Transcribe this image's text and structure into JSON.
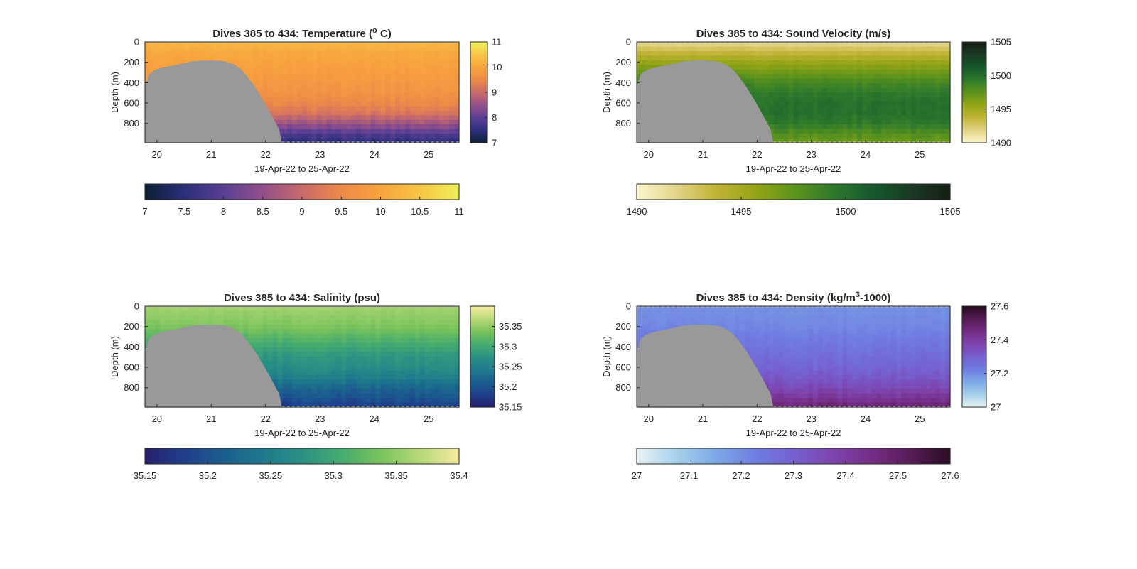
{
  "figure": {
    "panels": [
      {
        "id": "temperature",
        "title_prefix": "Dives 385 to 434: Temperature (",
        "title_sup": "o",
        "title_suffix": " C)",
        "colormap": [
          "#0b1f33",
          "#2c2f7a",
          "#5a3f94",
          "#93508a",
          "#c86a6b",
          "#ed8a48",
          "#f7a33e",
          "#f9c545",
          "#eef05a"
        ],
        "colorbar_ticks": [
          "7",
          "7.5",
          "8",
          "8.5",
          "9",
          "9.5",
          "10",
          "10.5",
          "11"
        ],
        "side_colorbar_ticks": [
          "7",
          "8",
          "9",
          "10",
          "11"
        ]
      },
      {
        "id": "sound_velocity",
        "title_prefix": "Dives 385 to 434: Sound Velocity (m/s)",
        "title_sup": "",
        "title_suffix": "",
        "colormap": [
          "#fbf6cf",
          "#e3d58a",
          "#c2b436",
          "#96a516",
          "#5f941c",
          "#2f7a2c",
          "#16592c",
          "#1a3a24",
          "#171e15"
        ],
        "colorbar_ticks": [
          "1490",
          "1495",
          "1500",
          "1505"
        ],
        "side_colorbar_ticks": [
          "1490",
          "1495",
          "1500",
          "1505"
        ]
      },
      {
        "id": "salinity",
        "title_prefix": "Dives 385 to 434: Salinity (psu)",
        "title_sup": "",
        "title_suffix": "",
        "colormap": [
          "#271f6b",
          "#1f3f8c",
          "#1b5e8f",
          "#1e7a8c",
          "#2a9184",
          "#45ab70",
          "#79c35b",
          "#b6d978",
          "#f6ea9e"
        ],
        "colorbar_ticks": [
          "35.15",
          "35.2",
          "35.25",
          "35.3",
          "35.35",
          "35.4"
        ],
        "side_colorbar_ticks": [
          "35.15",
          "35.2",
          "35.25",
          "35.3",
          "35.35"
        ]
      },
      {
        "id": "density",
        "title_prefix": "Dives 385 to 434: Density (kg/m",
        "title_sup": "3",
        "title_suffix": "-1000)",
        "colormap": [
          "#e9f4f4",
          "#a8d1ea",
          "#7ea9e6",
          "#6f7fe0",
          "#7561cf",
          "#7e44ae",
          "#742d85",
          "#561c56",
          "#2a0d24"
        ],
        "colorbar_ticks": [
          "27",
          "27.1",
          "27.2",
          "27.3",
          "27.4",
          "27.5",
          "27.6"
        ],
        "side_colorbar_ticks": [
          "27",
          "27.2",
          "27.4",
          "27.6"
        ]
      }
    ],
    "shared": {
      "ylabel": "Depth (m)",
      "xlabel": "19-Apr-22 to 25-Apr-22",
      "y_ticks": [
        "0",
        "200",
        "400",
        "600",
        "800"
      ],
      "x_ticks": [
        "20",
        "21",
        "22",
        "23",
        "24",
        "25"
      ],
      "bathymetry_color": "#999999"
    }
  },
  "chart_data": [
    {
      "type": "heatmap",
      "title": "Dives 385 to 434: Temperature (o C)",
      "xlabel": "19-Apr-22 to 25-Apr-22",
      "ylabel": "Depth (m)",
      "xlim": [
        19.78,
        25.56
      ],
      "ylim": [
        0,
        990
      ],
      "y_reversed": true,
      "clim": [
        7,
        11
      ],
      "colorbar_label_ticks": [
        7,
        7.5,
        8,
        8.5,
        9,
        9.5,
        10,
        10.5,
        11
      ],
      "profile_depths": [
        0,
        100,
        200,
        300,
        400,
        500,
        600,
        700,
        800,
        900,
        990
      ],
      "profile_values": [
        10.3,
        10.1,
        10.0,
        9.9,
        9.8,
        9.7,
        9.5,
        9.2,
        8.6,
        7.9,
        7.5
      ],
      "seafloor_x": [
        19.78,
        19.85,
        19.95,
        20.05,
        20.15,
        20.25,
        20.35,
        20.45,
        20.55,
        20.65,
        20.75,
        20.85,
        20.95,
        21.05,
        21.15,
        21.25,
        21.35,
        21.45,
        21.55,
        21.65,
        21.75,
        21.85,
        21.95,
        22.05,
        22.15,
        22.25,
        22.3
      ],
      "seafloor_depth": [
        440,
        320,
        280,
        260,
        250,
        235,
        225,
        215,
        200,
        190,
        185,
        183,
        182,
        182,
        185,
        190,
        205,
        230,
        270,
        330,
        400,
        480,
        570,
        660,
        760,
        860,
        990
      ]
    },
    {
      "type": "heatmap",
      "title": "Dives 385 to 434: Sound Velocity (m/s)",
      "xlabel": "19-Apr-22 to 25-Apr-22",
      "ylabel": "Depth (m)",
      "xlim": [
        19.78,
        25.56
      ],
      "ylim": [
        0,
        990
      ],
      "y_reversed": true,
      "clim": [
        1490,
        1505
      ],
      "colorbar_label_ticks": [
        1490,
        1495,
        1500,
        1505
      ],
      "profile_depths": [
        0,
        100,
        200,
        300,
        400,
        500,
        600,
        700,
        800,
        900,
        990
      ],
      "profile_values": [
        1491.5,
        1493.5,
        1495.5,
        1497,
        1498.5,
        1499.5,
        1500,
        1500,
        1499.5,
        1498,
        1497
      ],
      "seafloor_x": [
        19.78,
        19.85,
        19.95,
        20.05,
        20.15,
        20.25,
        20.35,
        20.45,
        20.55,
        20.65,
        20.75,
        20.85,
        20.95,
        21.05,
        21.15,
        21.25,
        21.35,
        21.45,
        21.55,
        21.65,
        21.75,
        21.85,
        21.95,
        22.05,
        22.15,
        22.25,
        22.3
      ],
      "seafloor_depth": [
        440,
        320,
        280,
        260,
        250,
        235,
        225,
        215,
        200,
        190,
        185,
        183,
        182,
        182,
        185,
        190,
        205,
        230,
        270,
        330,
        400,
        480,
        570,
        660,
        760,
        860,
        990
      ]
    },
    {
      "type": "heatmap",
      "title": "Dives 385 to 434: Salinity (psu)",
      "xlabel": "19-Apr-22 to 25-Apr-22",
      "ylabel": "Depth (m)",
      "xlim": [
        19.78,
        25.56
      ],
      "ylim": [
        0,
        990
      ],
      "y_reversed": true,
      "clim": [
        35.15,
        35.4
      ],
      "colorbar_label_ticks": [
        35.15,
        35.2,
        35.25,
        35.3,
        35.35,
        35.4
      ],
      "profile_depths": [
        0,
        100,
        200,
        300,
        400,
        500,
        600,
        700,
        800,
        900,
        990
      ],
      "profile_values": [
        35.36,
        35.35,
        35.34,
        35.32,
        35.3,
        35.28,
        35.27,
        35.25,
        35.22,
        35.2,
        35.18
      ],
      "seafloor_x": [
        19.78,
        19.85,
        19.95,
        20.05,
        20.15,
        20.25,
        20.35,
        20.45,
        20.55,
        20.65,
        20.75,
        20.85,
        20.95,
        21.05,
        21.15,
        21.25,
        21.35,
        21.45,
        21.55,
        21.65,
        21.75,
        21.85,
        21.95,
        22.05,
        22.15,
        22.25,
        22.3
      ],
      "seafloor_depth": [
        440,
        320,
        280,
        260,
        250,
        235,
        225,
        215,
        200,
        190,
        185,
        183,
        182,
        182,
        185,
        190,
        205,
        230,
        270,
        330,
        400,
        480,
        570,
        660,
        760,
        860,
        990
      ]
    },
    {
      "type": "heatmap",
      "title": "Dives 385 to 434: Density (kg/m3-1000)",
      "xlabel": "19-Apr-22 to 25-Apr-22",
      "ylabel": "Depth (m)",
      "xlim": [
        19.78,
        25.56
      ],
      "ylim": [
        0,
        990
      ],
      "y_reversed": true,
      "clim": [
        27,
        27.6
      ],
      "colorbar_label_ticks": [
        27,
        27.1,
        27.2,
        27.3,
        27.4,
        27.5,
        27.6
      ],
      "profile_depths": [
        0,
        100,
        200,
        300,
        400,
        500,
        600,
        700,
        800,
        900,
        990
      ],
      "profile_values": [
        27.19,
        27.2,
        27.21,
        27.23,
        27.25,
        27.27,
        27.29,
        27.32,
        27.36,
        27.42,
        27.48
      ],
      "seafloor_x": [
        19.78,
        19.85,
        19.95,
        20.05,
        20.15,
        20.25,
        20.35,
        20.45,
        20.55,
        20.65,
        20.75,
        20.85,
        20.95,
        21.05,
        21.15,
        21.25,
        21.35,
        21.45,
        21.55,
        21.65,
        21.75,
        21.85,
        21.95,
        22.05,
        22.15,
        22.25,
        22.3
      ],
      "seafloor_depth": [
        440,
        320,
        280,
        260,
        250,
        235,
        225,
        215,
        200,
        190,
        185,
        183,
        182,
        182,
        185,
        190,
        205,
        230,
        270,
        330,
        400,
        480,
        570,
        660,
        760,
        860,
        990
      ]
    }
  ]
}
